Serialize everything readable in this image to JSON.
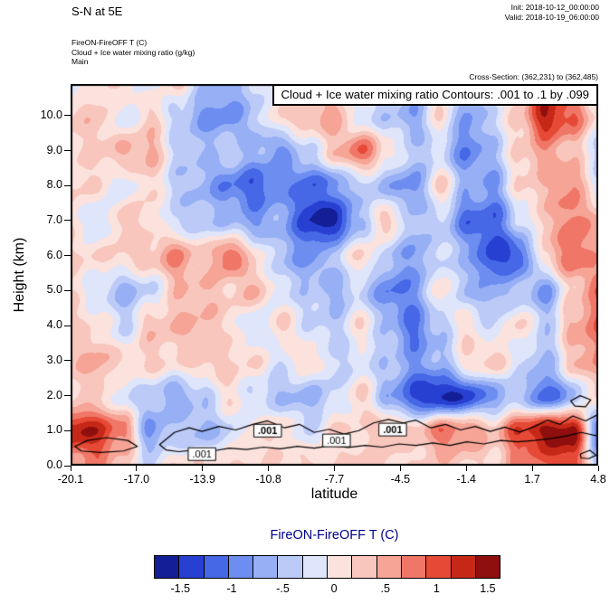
{
  "header": {
    "title": "S-N at 5E",
    "init": "Init: 2018-10-12_00:00:00",
    "valid": "Valid: 2018-10-19_06:00:00",
    "field_line1": "FireON-FireOFF T   (C)",
    "field_line2": "Cloud + Ice water mixing ratio   (g/kg)",
    "field_line3": "Main",
    "cross_section": "Cross-Section: (362,231) to (362,485)"
  },
  "plot": {
    "banner": "Cloud + Ice water mixing ratio Contours: .001 to .1 by .099"
  },
  "axes": {
    "x_label": "latitude",
    "y_label": "Height (km)",
    "x_ticks": [
      "-20.1",
      "-17.0",
      "-13.9",
      "-10.8",
      "-7.7",
      "-4.5",
      "-1.4",
      "1.7",
      "4.8"
    ],
    "y_ticks": [
      "0.0",
      "1.0",
      "2.0",
      "3.0",
      "4.0",
      "5.0",
      "6.0",
      "7.0",
      "8.0",
      "9.0",
      "10.0"
    ]
  },
  "colorbar": {
    "title": "FireON-FireOFF T  (C)",
    "title_color": "#00008b",
    "tick_labels": [
      "-1.5",
      "-1",
      "-.5",
      "0",
      ".5",
      "1",
      "1.5"
    ]
  },
  "chart_data": {
    "type": "heatmap",
    "title": "FireON-FireOFF T (C) cross-section with Cloud + Ice water mixing ratio contours (.001 to .1 by .099)",
    "xlabel": "latitude",
    "ylabel": "Height (km)",
    "x_range": [
      -20.1,
      4.8
    ],
    "y_range": [
      0,
      10.9
    ],
    "legend": "colorbar bottom, FireON-FireOFF T (C), -1.75 to 1.75 by 0.25",
    "grid_lats": [
      -20.1,
      -18.86,
      -17.61,
      -16.37,
      -15.12,
      -13.88,
      -12.63,
      -11.39,
      -10.14,
      -8.9,
      -7.65,
      -6.41,
      -5.16,
      -3.92,
      -2.67,
      -1.43,
      -0.18,
      1.07,
      2.31,
      3.56,
      4.8
    ],
    "grid_heights_km": [
      11,
      10,
      9,
      8,
      7,
      6,
      5,
      4,
      3,
      2,
      1,
      0
    ],
    "values": [
      [
        -0.3,
        0.2,
        0.3,
        -0.2,
        0.3,
        -0.4,
        -0.6,
        -0.3,
        0.2,
        -0.3,
        0.4,
        0.2,
        -0.3,
        -0.5,
        0.3,
        -0.6,
        0.2,
        0.3,
        1.2,
        0.8,
        -0.4
      ],
      [
        0.3,
        0.4,
        -0.2,
        0.3,
        -0.3,
        -0.8,
        -0.9,
        -0.4,
        0.3,
        0.5,
        0.6,
        -0.2,
        -0.4,
        -0.7,
        0.2,
        -0.8,
        -0.3,
        0.4,
        1.5,
        1.0,
        0.2
      ],
      [
        0.2,
        0.3,
        0.5,
        0.6,
        -0.3,
        -0.5,
        -0.3,
        -0.6,
        -0.8,
        -0.3,
        0.4,
        1.0,
        0.2,
        -0.4,
        -0.3,
        -1.0,
        -0.5,
        0.3,
        0.7,
        0.4,
        -0.3
      ],
      [
        0.3,
        0.2,
        -0.2,
        0.3,
        -0.4,
        -0.6,
        -1.0,
        -1.2,
        -0.8,
        -1.2,
        -0.9,
        -0.3,
        -0.6,
        -0.9,
        0.3,
        -0.6,
        -0.8,
        0.2,
        0.5,
        0.8,
        -0.2
      ],
      [
        0.2,
        -0.3,
        0.4,
        0.2,
        -0.3,
        -0.4,
        -0.5,
        -0.8,
        -0.6,
        -1.5,
        -1.6,
        -0.5,
        0.4,
        -0.5,
        -0.3,
        -1.1,
        -1.2,
        -0.3,
        0.4,
        0.9,
        0.5
      ],
      [
        0.3,
        0.2,
        0.3,
        0.4,
        0.8,
        0.3,
        1.0,
        0.2,
        -0.5,
        -0.9,
        -0.4,
        0.3,
        -0.4,
        -0.8,
        -0.2,
        -0.6,
        -1.4,
        -1.2,
        0.3,
        1.0,
        0.6
      ],
      [
        0.2,
        -0.2,
        -0.6,
        -0.3,
        0.4,
        0.5,
        0.3,
        0.5,
        -0.2,
        -0.4,
        -0.6,
        -0.3,
        -1.0,
        -0.9,
        0.2,
        -0.5,
        -0.7,
        -0.4,
        -0.8,
        0.3,
        0.9
      ],
      [
        0.3,
        0.2,
        -0.3,
        0.4,
        0.5,
        0.5,
        0.2,
        -0.3,
        0.3,
        -0.2,
        -0.4,
        0.2,
        -0.5,
        -1.1,
        -0.4,
        0.2,
        -0.3,
        0.3,
        -0.4,
        0.5,
        1.0
      ],
      [
        0.4,
        0.6,
        0.2,
        0.3,
        0.2,
        0.4,
        0.3,
        0.2,
        -0.2,
        0.3,
        -0.3,
        -0.2,
        -0.4,
        -0.8,
        -0.6,
        0.2,
        0.4,
        -0.2,
        -0.6,
        0.4,
        0.8
      ],
      [
        0.2,
        0.3,
        -0.2,
        -0.4,
        -0.7,
        -0.4,
        0.2,
        -0.3,
        -0.5,
        -0.6,
        -0.3,
        0.3,
        -0.6,
        -1.3,
        -1.6,
        -1.4,
        -0.8,
        -0.4,
        -1.2,
        -0.6,
        0.3
      ],
      [
        1.5,
        1.4,
        0.8,
        -0.8,
        -0.4,
        -0.6,
        -0.3,
        0.2,
        0.3,
        -0.3,
        0.3,
        0.2,
        0.5,
        0.3,
        0.9,
        0.8,
        0.4,
        1.2,
        1.6,
        1.7,
        -1.0
      ],
      [
        0.6,
        0.8,
        0.3,
        -0.2,
        0.2,
        0.2,
        0.3,
        0.2,
        0.2,
        0.3,
        0.2,
        0.3,
        0.3,
        0.2,
        0.4,
        0.3,
        0.2,
        0.8,
        1.0,
        1.2,
        -0.5
      ]
    ],
    "colorbar_levels": [
      -1.75,
      -1.5,
      -1.25,
      -1,
      -0.75,
      -0.5,
      -0.25,
      0,
      0.25,
      0.5,
      0.75,
      1,
      1.25,
      1.5,
      1.75
    ],
    "colorbar_colors": [
      "#141e96",
      "#2840d2",
      "#4667e6",
      "#6d8ef0",
      "#96aff5",
      "#bccaf8",
      "#dfe5fb",
      "#fbe2dd",
      "#f8c6bd",
      "#f5a496",
      "#f07767",
      "#e64936",
      "#c62818",
      "#8f0e0e"
    ],
    "contours_001": [
      {
        "closed": true,
        "points": [
          [
            -19.9,
            0.55
          ],
          [
            -19.3,
            0.72
          ],
          [
            -18.4,
            0.8
          ],
          [
            -17.4,
            0.72
          ],
          [
            -16.95,
            0.55
          ],
          [
            -17.6,
            0.42
          ],
          [
            -18.7,
            0.38
          ],
          [
            -19.6,
            0.42
          ]
        ]
      },
      {
        "closed": true,
        "points": [
          [
            -15.9,
            0.6
          ],
          [
            -15.2,
            0.95
          ],
          [
            -14.5,
            1.08
          ],
          [
            -13.9,
            0.98
          ],
          [
            -13.1,
            1.12
          ],
          [
            -12.3,
            1.02
          ],
          [
            -11.5,
            1.18
          ],
          [
            -10.8,
            1.28
          ],
          [
            -10.0,
            1.08
          ],
          [
            -9.3,
            1.18
          ],
          [
            -8.6,
            0.95
          ],
          [
            -7.9,
            1.04
          ],
          [
            -7.2,
            0.9
          ],
          [
            -6.5,
            1.0
          ],
          [
            -5.8,
            1.22
          ],
          [
            -5.1,
            1.32
          ],
          [
            -4.4,
            1.22
          ],
          [
            -3.8,
            1.3
          ],
          [
            -3.1,
            1.08
          ],
          [
            -2.4,
            1.18
          ],
          [
            -1.7,
            1.02
          ],
          [
            -1.0,
            1.12
          ],
          [
            -0.3,
            0.98
          ],
          [
            0.4,
            1.1
          ],
          [
            1.1,
            0.96
          ],
          [
            1.8,
            1.12
          ],
          [
            2.4,
            1.3
          ],
          [
            3.0,
            1.18
          ],
          [
            3.6,
            1.42
          ],
          [
            4.2,
            1.28
          ],
          [
            4.75,
            1.45
          ],
          [
            4.75,
            0.85
          ],
          [
            4.0,
            0.95
          ],
          [
            3.3,
            0.85
          ],
          [
            2.6,
            0.78
          ],
          [
            1.8,
            0.72
          ],
          [
            1.0,
            0.68
          ],
          [
            0.2,
            0.72
          ],
          [
            -0.6,
            0.62
          ],
          [
            -1.4,
            0.68
          ],
          [
            -2.2,
            0.58
          ],
          [
            -3.0,
            0.65
          ],
          [
            -3.8,
            0.58
          ],
          [
            -4.6,
            0.62
          ],
          [
            -5.4,
            0.53
          ],
          [
            -6.2,
            0.58
          ],
          [
            -7.0,
            0.52
          ],
          [
            -7.8,
            0.58
          ],
          [
            -8.6,
            0.5
          ],
          [
            -9.4,
            0.55
          ],
          [
            -10.2,
            0.48
          ],
          [
            -11.0,
            0.53
          ],
          [
            -11.8,
            0.46
          ],
          [
            -12.6,
            0.5
          ],
          [
            -13.4,
            0.42
          ],
          [
            -14.2,
            0.45
          ],
          [
            -15.0,
            0.4
          ],
          [
            -15.6,
            0.45
          ]
        ]
      },
      {
        "closed": true,
        "points": [
          [
            3.5,
            1.85
          ],
          [
            3.95,
            2.0
          ],
          [
            4.45,
            1.88
          ],
          [
            4.2,
            1.68
          ],
          [
            3.7,
            1.7
          ]
        ]
      },
      {
        "closed": true,
        "points": [
          [
            3.95,
            0.33
          ],
          [
            4.4,
            0.44
          ],
          [
            4.7,
            0.3
          ],
          [
            4.35,
            0.2
          ],
          [
            4.0,
            0.22
          ]
        ]
      }
    ],
    "contour_labels": [
      {
        "text": ".001",
        "lat": -13.9,
        "km": 0.33,
        "bold": false
      },
      {
        "text": ".001",
        "lat": -10.8,
        "km": 1.0,
        "bold": true
      },
      {
        "text": ".001",
        "lat": -7.55,
        "km": 0.72,
        "bold": false
      },
      {
        "text": ".001",
        "lat": -4.9,
        "km": 1.03,
        "bold": true
      }
    ]
  }
}
